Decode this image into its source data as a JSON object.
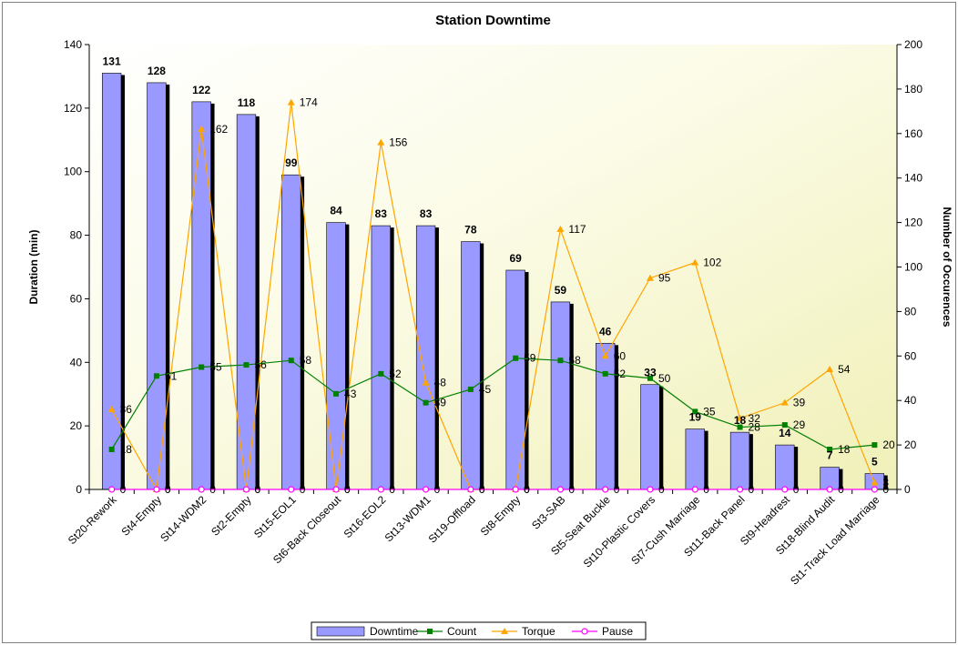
{
  "chart_data": {
    "type": "bar",
    "title": "Station Downtime",
    "ylabel": "Duration (min)",
    "y2label": "Number of Occurences",
    "ylim": [
      0,
      140
    ],
    "y2lim": [
      0,
      200
    ],
    "yticks": [
      0,
      20,
      40,
      60,
      80,
      100,
      120,
      140
    ],
    "y2ticks": [
      0,
      20,
      40,
      60,
      80,
      100,
      120,
      140,
      160,
      180,
      200
    ],
    "categories": [
      "St20-Rework",
      "St4-Empty",
      "St14-WDM2",
      "St2-Empty",
      "St15-EOL1",
      "St6-Back Closeout",
      "St16-EOL2",
      "St13-WDM1",
      "St19-Offload",
      "St8-Empty",
      "St3-SAB",
      "St5-Seat Buckle",
      "St10-Plastic Covers",
      "St7-Cush Marriage",
      "St11-Back Panel",
      "St9-Headrest",
      "St18-Blind Audit",
      "St1-Track Load Marriage"
    ],
    "series": [
      {
        "name": "Downtime",
        "type": "bar",
        "axis": "left",
        "values": [
          131,
          128,
          122,
          118,
          99,
          84,
          83,
          83,
          78,
          69,
          59,
          46,
          33,
          19,
          18,
          14,
          7,
          5
        ]
      },
      {
        "name": "Count",
        "type": "line",
        "axis": "right",
        "values": [
          18,
          51,
          55,
          56,
          58,
          43,
          52,
          39,
          45,
          59,
          58,
          52,
          50,
          35,
          28,
          29,
          18,
          20
        ]
      },
      {
        "name": "Torque",
        "type": "line",
        "axis": "right",
        "values": [
          36,
          0,
          162,
          0,
          174,
          0,
          156,
          48,
          0,
          0,
          117,
          60,
          95,
          102,
          32,
          39,
          54,
          3
        ]
      },
      {
        "name": "Pause",
        "type": "line",
        "axis": "right",
        "values": [
          0,
          0,
          0,
          0,
          0,
          0,
          0,
          0,
          0,
          0,
          0,
          0,
          0,
          0,
          0,
          0,
          0,
          0
        ]
      }
    ],
    "colors": {
      "Downtime": "#9999ff",
      "Count": "#008000",
      "Torque": "#ffa500",
      "Pause": "#ff00ff"
    },
    "legend": "bottom",
    "grid": false
  }
}
